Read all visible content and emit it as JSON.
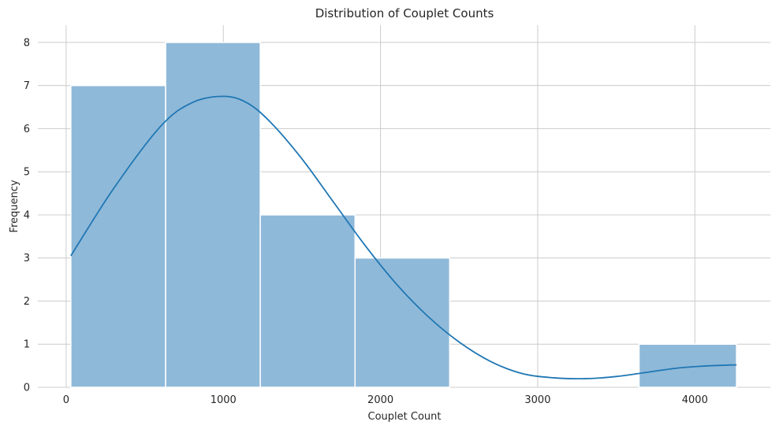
{
  "chart_data": {
    "type": "bar",
    "subtype": "histogram-with-kde",
    "title": "Distribution of Couplet Counts",
    "xlabel": "Couplet Count",
    "ylabel": "Frequency",
    "xlim": [
      -180,
      4480
    ],
    "ylim": [
      0,
      8.4
    ],
    "x_ticks": [
      0,
      1000,
      2000,
      3000,
      4000
    ],
    "x_tick_labels": [
      "0",
      "1000",
      "2000",
      "3000",
      "4000"
    ],
    "y_ticks": [
      0,
      1,
      2,
      3,
      4,
      5,
      6,
      7,
      8
    ],
    "y_tick_labels": [
      "0",
      "1",
      "2",
      "3",
      "4",
      "5",
      "6",
      "7",
      "8"
    ],
    "grid": true,
    "bars": [
      {
        "x_start": 30,
        "x_end": 633,
        "value": 7
      },
      {
        "x_start": 633,
        "x_end": 1235,
        "value": 8
      },
      {
        "x_start": 1235,
        "x_end": 1838,
        "value": 4
      },
      {
        "x_start": 1838,
        "x_end": 2440,
        "value": 3
      },
      {
        "x_start": 2440,
        "x_end": 3043,
        "value": 0
      },
      {
        "x_start": 3043,
        "x_end": 3645,
        "value": 0
      },
      {
        "x_start": 3645,
        "x_end": 4265,
        "value": 1
      }
    ],
    "kde": {
      "x": [
        30,
        300,
        600,
        800,
        1000,
        1150,
        1300,
        1500,
        1700,
        1900,
        2100,
        2300,
        2500,
        2700,
        2900,
        3100,
        3300,
        3500,
        3700,
        3900,
        4100,
        4265
      ],
      "y": [
        3.05,
        4.6,
        6.05,
        6.6,
        6.75,
        6.6,
        6.15,
        5.3,
        4.3,
        3.3,
        2.4,
        1.65,
        1.05,
        0.6,
        0.32,
        0.22,
        0.2,
        0.25,
        0.35,
        0.45,
        0.5,
        0.52
      ]
    },
    "colors": {
      "bar_fill": "#8fb9d9",
      "bar_edge": "#ffffff",
      "kde_line": "#1f77b4",
      "grid": "#cccccc"
    }
  }
}
